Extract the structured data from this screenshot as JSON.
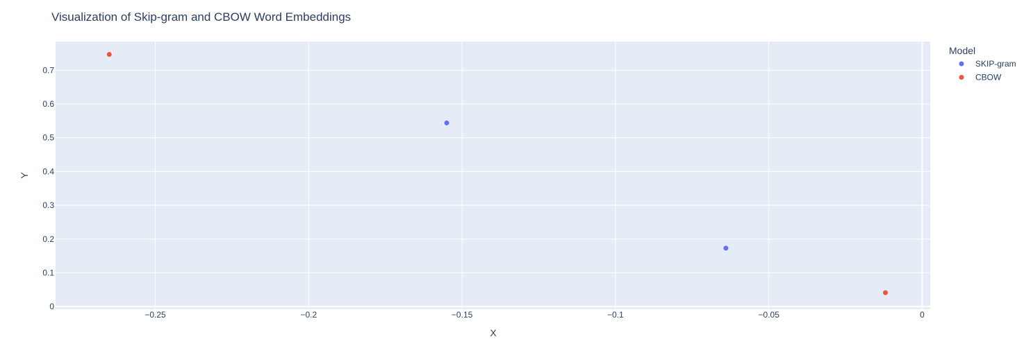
{
  "chart_data": {
    "type": "scatter",
    "title": "Visualization of Skip-gram and CBOW Word Embeddings",
    "xlabel": "X",
    "ylabel": "Y",
    "xlim": [
      -0.2825,
      0.0026
    ],
    "ylim": [
      -0.008,
      0.785
    ],
    "xticks": [
      -0.25,
      -0.2,
      -0.15,
      -0.1,
      -0.05,
      0
    ],
    "xtick_labels": [
      "−0.25",
      "−0.2",
      "−0.15",
      "−0.1",
      "−0.05",
      "0"
    ],
    "yticks": [
      0,
      0.1,
      0.2,
      0.3,
      0.4,
      0.5,
      0.6,
      0.7
    ],
    "ytick_labels": [
      "0",
      "0.1",
      "0.2",
      "0.3",
      "0.4",
      "0.5",
      "0.6",
      "0.7"
    ],
    "grid": true,
    "legend": {
      "title": "Model",
      "position": "top-right"
    },
    "series": [
      {
        "name": "SKIP-gram",
        "color": "#636efa",
        "points": [
          {
            "x": -0.155,
            "y": 0.544
          },
          {
            "x": -0.064,
            "y": 0.173
          }
        ]
      },
      {
        "name": "CBOW",
        "color": "#ef553b",
        "points": [
          {
            "x": -0.265,
            "y": 0.747
          },
          {
            "x": -0.012,
            "y": 0.041
          }
        ]
      }
    ],
    "colors": {
      "plot_background": "#e5ecf6",
      "grid": "#ffffff",
      "text": "#2a3f5f"
    }
  }
}
